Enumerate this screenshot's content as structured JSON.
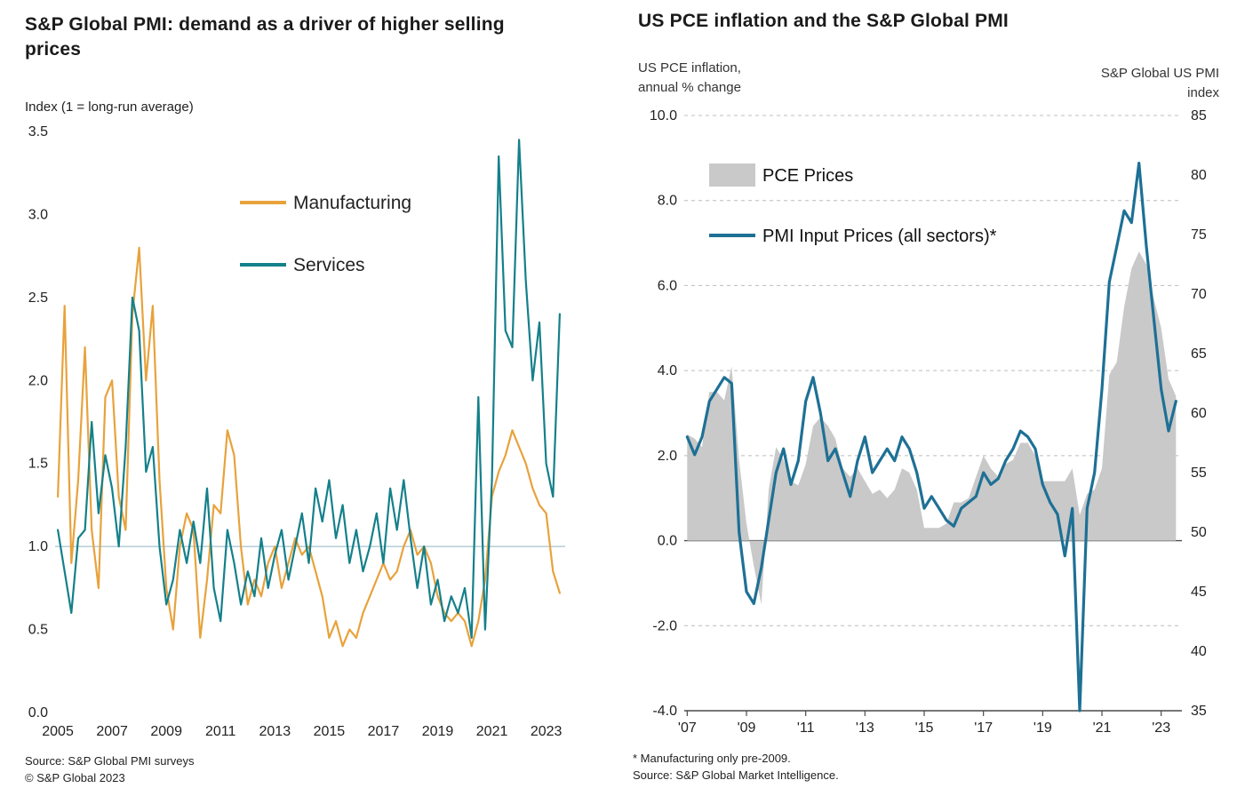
{
  "chart_data": [
    {
      "type": "line",
      "title": "S&P Global PMI: demand as a driver of higher selling prices",
      "ylabel": "Index (1 = long-run average)",
      "source": "Source: S&P Global PMI surveys",
      "copyright": "© S&P Global 2023",
      "ylim": [
        0,
        3.5
      ],
      "xlim": [
        2005,
        2023.5
      ],
      "reference_line": 1.0,
      "grid": "off",
      "legend_position": "upper-center-inside",
      "ytick_values": [
        0,
        0.5,
        1,
        1.5,
        2,
        2.5,
        3,
        3.5
      ],
      "ytick_labels": [
        "0.0",
        "0.5",
        "1.0",
        "1.5",
        "2.0",
        "2.5",
        "3.0",
        "3.5"
      ],
      "xtick_values": [
        2005,
        2007,
        2009,
        2011,
        2013,
        2015,
        2017,
        2019,
        2021,
        2023
      ],
      "xtick_labels": [
        "2005",
        "2007",
        "2009",
        "2011",
        "2013",
        "2015",
        "2017",
        "2019",
        "2021",
        "2023"
      ],
      "x": [
        2005.0,
        2005.25,
        2005.5,
        2005.75,
        2006.0,
        2006.25,
        2006.5,
        2006.75,
        2007.0,
        2007.25,
        2007.5,
        2007.75,
        2008.0,
        2008.25,
        2008.5,
        2008.75,
        2009.0,
        2009.25,
        2009.5,
        2009.75,
        2010.0,
        2010.25,
        2010.5,
        2010.75,
        2011.0,
        2011.25,
        2011.5,
        2011.75,
        2012.0,
        2012.25,
        2012.5,
        2012.75,
        2013.0,
        2013.25,
        2013.5,
        2013.75,
        2014.0,
        2014.25,
        2014.5,
        2014.75,
        2015.0,
        2015.25,
        2015.5,
        2015.75,
        2016.0,
        2016.25,
        2016.5,
        2016.75,
        2017.0,
        2017.25,
        2017.5,
        2017.75,
        2018.0,
        2018.25,
        2018.5,
        2018.75,
        2019.0,
        2019.25,
        2019.5,
        2019.75,
        2020.0,
        2020.25,
        2020.5,
        2020.75,
        2021.0,
        2021.25,
        2021.5,
        2021.75,
        2022.0,
        2022.25,
        2022.5,
        2022.75,
        2023.0,
        2023.25,
        2023.5
      ],
      "series": [
        {
          "name": "Manufacturing",
          "color": "#E8A23C",
          "values": [
            1.3,
            2.45,
            0.9,
            1.4,
            2.2,
            1.1,
            0.75,
            1.9,
            2.0,
            1.3,
            1.1,
            2.4,
            2.8,
            2.0,
            2.45,
            1.4,
            0.75,
            0.5,
            1.0,
            1.2,
            1.1,
            0.45,
            0.8,
            1.25,
            1.2,
            1.7,
            1.55,
            1.0,
            0.65,
            0.8,
            0.7,
            0.9,
            1.0,
            0.75,
            0.9,
            1.05,
            0.95,
            1.0,
            0.85,
            0.7,
            0.45,
            0.55,
            0.4,
            0.5,
            0.45,
            0.6,
            0.7,
            0.8,
            0.9,
            0.8,
            0.85,
            1.0,
            1.1,
            0.95,
            1.0,
            0.9,
            0.7,
            0.6,
            0.55,
            0.6,
            0.55,
            0.4,
            0.55,
            0.8,
            1.3,
            1.45,
            1.55,
            1.7,
            1.6,
            1.5,
            1.35,
            1.25,
            1.2,
            0.85,
            0.72
          ]
        },
        {
          "name": "Services",
          "color": "#14808A",
          "values": [
            1.1,
            0.85,
            0.6,
            1.05,
            1.1,
            1.75,
            1.2,
            1.55,
            1.35,
            1.0,
            1.6,
            2.5,
            2.3,
            1.45,
            1.6,
            1.0,
            0.65,
            0.8,
            1.1,
            0.9,
            1.15,
            0.9,
            1.35,
            0.75,
            0.55,
            1.1,
            0.9,
            0.65,
            0.85,
            0.7,
            1.05,
            0.75,
            0.95,
            1.1,
            0.8,
            1.0,
            1.2,
            0.9,
            1.35,
            1.15,
            1.4,
            1.05,
            1.25,
            0.9,
            1.1,
            0.85,
            1.0,
            1.2,
            0.9,
            1.35,
            1.1,
            1.4,
            1.05,
            0.75,
            1.0,
            0.65,
            0.8,
            0.55,
            0.7,
            0.6,
            0.75,
            0.45,
            1.9,
            0.5,
            1.4,
            3.35,
            2.3,
            2.2,
            3.45,
            2.6,
            2.0,
            2.35,
            1.5,
            1.3,
            2.4
          ]
        }
      ]
    },
    {
      "type": "area-line",
      "title": "US PCE inflation and the S&P Global PMI",
      "left_axis_label_line1": "US PCE inflation,",
      "left_axis_label_line2": "annual % change",
      "right_axis_label_line1": "S&P Global US PMI",
      "right_axis_label_line2": "index",
      "footnote": "* Manufacturing only pre-2009.",
      "source": "Source: S&P Global Market Intelligence.",
      "grid": "dashed-horizontal",
      "legend_position": "upper-left-inside",
      "left_axis": {
        "range": [
          -4,
          10
        ],
        "tick_values": [
          10,
          8,
          6,
          4,
          2,
          0,
          -2,
          -4
        ],
        "tick_labels": [
          "10.0",
          "8.0",
          "6.0",
          "4.0",
          "2.0",
          "0.0",
          "-2.0",
          "-4.0"
        ]
      },
      "right_axis": {
        "range": [
          35,
          85
        ],
        "tick_values": [
          85,
          80,
          75,
          70,
          65,
          60,
          55,
          50,
          45,
          40,
          35
        ],
        "tick_labels": [
          "85",
          "80",
          "75",
          "70",
          "65",
          "60",
          "55",
          "50",
          "45",
          "40",
          "35"
        ]
      },
      "xtick_values": [
        2007,
        2009,
        2011,
        2013,
        2015,
        2017,
        2019,
        2021,
        2023
      ],
      "xtick_labels": [
        "'07",
        "'09",
        "'11",
        "'13",
        "'15",
        "'17",
        "'19",
        "'21",
        "'23"
      ],
      "x": [
        2007.0,
        2007.25,
        2007.5,
        2007.75,
        2008.0,
        2008.25,
        2008.5,
        2008.75,
        2009.0,
        2009.25,
        2009.5,
        2009.75,
        2010.0,
        2010.25,
        2010.5,
        2010.75,
        2011.0,
        2011.25,
        2011.5,
        2011.75,
        2012.0,
        2012.25,
        2012.5,
        2012.75,
        2013.0,
        2013.25,
        2013.5,
        2013.75,
        2014.0,
        2014.25,
        2014.5,
        2014.75,
        2015.0,
        2015.25,
        2015.5,
        2015.75,
        2016.0,
        2016.25,
        2016.5,
        2016.75,
        2017.0,
        2017.25,
        2017.5,
        2017.75,
        2018.0,
        2018.25,
        2018.5,
        2018.75,
        2019.0,
        2019.25,
        2019.5,
        2019.75,
        2020.0,
        2020.25,
        2020.5,
        2020.75,
        2021.0,
        2021.25,
        2021.5,
        2021.75,
        2022.0,
        2022.25,
        2022.5,
        2022.75,
        2023.0,
        2023.25,
        2023.5
      ],
      "area_series": {
        "name": "PCE Prices",
        "color": "#C9C9C9",
        "axis": "left",
        "values": [
          2.5,
          2.4,
          2.2,
          3.5,
          3.5,
          3.3,
          4.1,
          1.9,
          0.4,
          -0.6,
          -1.5,
          1.2,
          2.2,
          1.9,
          1.4,
          1.3,
          1.8,
          2.7,
          2.9,
          2.7,
          2.4,
          1.7,
          1.5,
          1.7,
          1.4,
          1.1,
          1.2,
          1.0,
          1.2,
          1.7,
          1.6,
          1.2,
          0.3,
          0.3,
          0.3,
          0.4,
          0.9,
          0.9,
          1.0,
          1.5,
          2.0,
          1.7,
          1.5,
          1.8,
          1.9,
          2.3,
          2.3,
          2.0,
          1.4,
          1.4,
          1.4,
          1.4,
          1.7,
          0.6,
          1.1,
          1.2,
          1.7,
          3.9,
          4.2,
          5.5,
          6.4,
          6.8,
          6.5,
          5.7,
          5.0,
          3.8,
          3.4
        ]
      },
      "line_series": {
        "name": "PMI Input Prices (all sectors)*",
        "color": "#1E7095",
        "axis": "right",
        "values": [
          58,
          56.5,
          58,
          61,
          62,
          63,
          62.5,
          50,
          45,
          44,
          47,
          51,
          55,
          57,
          54,
          56,
          61,
          63,
          60,
          56,
          57,
          55,
          53,
          56,
          58,
          55,
          56,
          57,
          56,
          58,
          57,
          55,
          52,
          53,
          52,
          51,
          50.5,
          52,
          52.5,
          53,
          55,
          54,
          54.5,
          56,
          57,
          58.5,
          58,
          57,
          54,
          52.5,
          51.5,
          48,
          52,
          35,
          52,
          55,
          62,
          71,
          74,
          77,
          76,
          81,
          74,
          68,
          62,
          58.5,
          61
        ]
      }
    }
  ]
}
